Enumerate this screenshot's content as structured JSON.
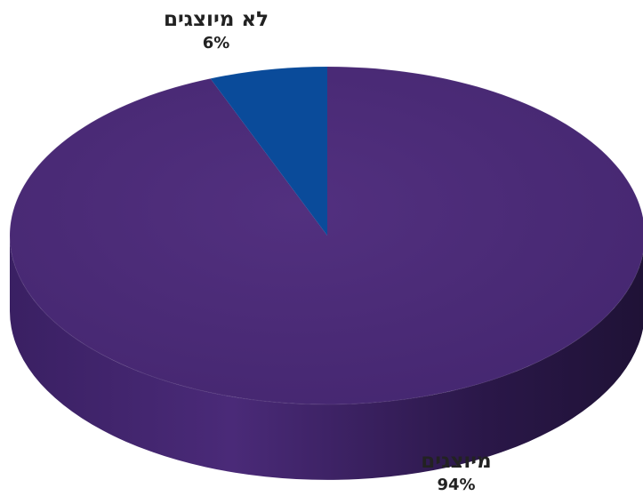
{
  "chart_data": {
    "type": "pie",
    "categories": [
      "מיוצגים",
      "לא מיוצגים"
    ],
    "values": [
      94,
      6
    ],
    "value_labels": [
      "94%",
      "6%"
    ],
    "colors": {
      "represented_top": "#4a2a78",
      "represented_side": "#331d59",
      "not_represented_top": "#0a4b9a",
      "not_represented_side": "#063870",
      "shadow": "#d9d9d9"
    }
  }
}
